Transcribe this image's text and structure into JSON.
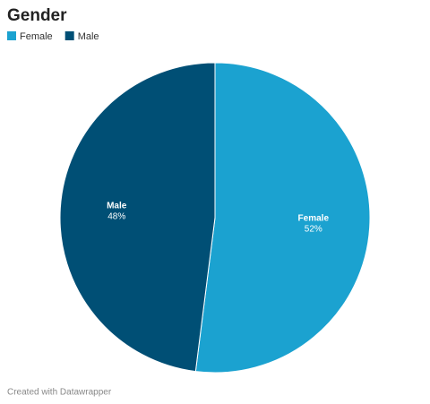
{
  "chart_data": {
    "type": "pie",
    "title": "Gender",
    "categories": [
      "Female",
      "Male"
    ],
    "values": [
      52,
      48
    ],
    "value_labels": [
      "52%",
      "48%"
    ],
    "colors": [
      "#1ba2d0",
      "#004f75"
    ],
    "legend": "top-left",
    "footer": "Created with Datawrapper"
  }
}
